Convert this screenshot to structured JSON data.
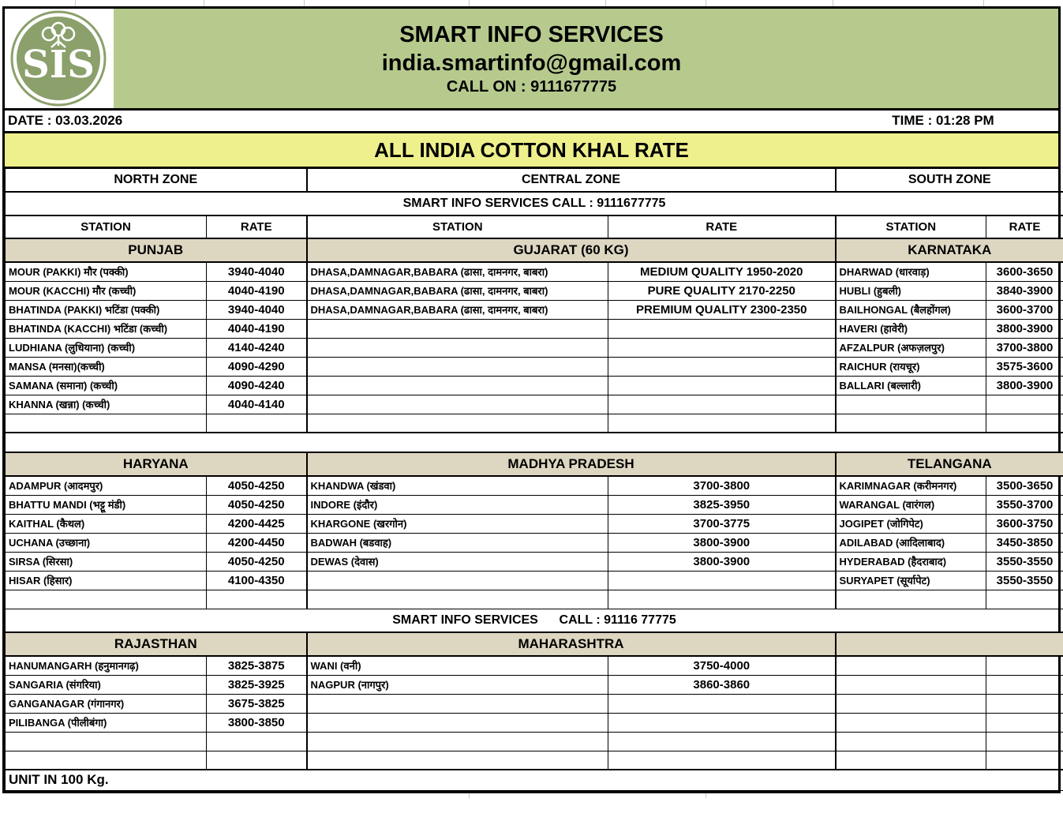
{
  "colors": {
    "header_green": "#b7ca8e",
    "title_yellow": "#eef08c",
    "state_band_tan": "#ddd6c1",
    "logo_green": "#8ba06b",
    "border_black": "#000000"
  },
  "logo": {
    "monogram": "SIS"
  },
  "header": {
    "company": "SMART INFO SERVICES",
    "email": "india.smartinfo@gmail.com",
    "call_on": "CALL ON : 9111677775"
  },
  "meta": {
    "date": "DATE : 03.03.2026",
    "time": "TIME : 01:28 PM"
  },
  "title": "ALL INDIA COTTON KHAL RATE",
  "table": {
    "zones": [
      "NORTH ZONE",
      "CENTRAL ZONE",
      "SOUTH ZONE"
    ],
    "call_line": "SMART INFO SERVICES CALL : 9111677775",
    "mid_call_line": "SMART INFO SERVICES      CALL : 91116 77775",
    "columns": [
      "STATION",
      "RATE"
    ],
    "sections": [
      {
        "states": [
          "PUNJAB",
          "GUJARAT (60 KG)",
          "KARNATAKA"
        ],
        "rows": [
          {
            "n_station": "MOUR (PAKKI) मौर (पक्की)",
            "n_rate": "3940-4040",
            "c_station": "DHASA,DAMNAGAR,BABARA (ढासा, दामनगर, बाबरा)",
            "c_rate": "MEDIUM QUALITY 1950-2020",
            "s_station": "DHARWAD (धारवाड़)",
            "s_rate": "3600-3650"
          },
          {
            "n_station": "MOUR (KACCHI) मौर (कच्ची)",
            "n_rate": "4040-4190",
            "c_station": "DHASA,DAMNAGAR,BABARA (ढासा, दामनगर, बाबरा)",
            "c_rate": "PURE QUALITY 2170-2250",
            "s_station": "HUBLI (हुबली)",
            "s_rate": "3840-3900"
          },
          {
            "n_station": "BHATINDA (PAKKI) भटिंडा (पक्की)",
            "n_rate": "3940-4040",
            "c_station": "DHASA,DAMNAGAR,BABARA (ढासा, दामनगर, बाबरा)",
            "c_rate": "PREMIUM QUALITY 2300-2350",
            "s_station": "BAILHONGAL (बैलहोंगल)",
            "s_rate": "3600-3700"
          },
          {
            "n_station": "BHATINDA (KACCHI) भटिंडा (कच्ची)",
            "n_rate": "4040-4190",
            "c_station": "",
            "c_rate": "",
            "s_station": "HAVERI (हावेरी)",
            "s_rate": "3800-3900"
          },
          {
            "n_station": "LUDHIANA (लुधियाना) (कच्ची)",
            "n_rate": "4140-4240",
            "c_station": "",
            "c_rate": "",
            "s_station": "AFZALPUR (अफज़लपुर)",
            "s_rate": "3700-3800"
          },
          {
            "n_station": "MANSA (मनसा)(कच्ची)",
            "n_rate": "4090-4290",
            "c_station": "",
            "c_rate": "",
            "s_station": "RAICHUR (रायचूर)",
            "s_rate": "3575-3600"
          },
          {
            "n_station": "SAMANA (समाना) (कच्ची)",
            "n_rate": "4090-4240",
            "c_station": "",
            "c_rate": "",
            "s_station": "BALLARI (बल्लारी)",
            "s_rate": "3800-3900"
          },
          {
            "n_station": "KHANNA (खन्ना) (कच्ची)",
            "n_rate": "4040-4140",
            "c_station": "",
            "c_rate": "",
            "s_station": "",
            "s_rate": ""
          },
          {
            "n_station": "",
            "n_rate": "",
            "c_station": "",
            "c_rate": "",
            "s_station": "",
            "s_rate": ""
          }
        ]
      },
      {
        "states": [
          "HARYANA",
          "MADHYA PRADESH",
          "TELANGANA"
        ],
        "rows": [
          {
            "n_station": "ADAMPUR (आदमपुर)",
            "n_rate": "4050-4250",
            "c_station": "KHANDWA (खंडवा)",
            "c_rate": "3700-3800",
            "s_station": "KARIMNAGAR (करीमनगर)",
            "s_rate": "3500-3650"
          },
          {
            "n_station": "BHATTU MANDI (भट्टू मंडी)",
            "n_rate": "4050-4250",
            "c_station": "INDORE (इंदौर)",
            "c_rate": "3825-3950",
            "s_station": "WARANGAL (वारंगल)",
            "s_rate": "3550-3700"
          },
          {
            "n_station": "KAITHAL (कैथल)",
            "n_rate": "4200-4425",
            "c_station": "KHARGONE (खरगोन)",
            "c_rate": "3700-3775",
            "s_station": "JOGIPET (जोगिपेट)",
            "s_rate": "3600-3750"
          },
          {
            "n_station": "UCHANA (उच्छाना)",
            "n_rate": "4200-4450",
            "c_station": "BADWAH (बडवाह)",
            "c_rate": "3800-3900",
            "s_station": "ADILABAD (आदिलाबाद)",
            "s_rate": "3450-3850"
          },
          {
            "n_station": "SIRSA (सिरसा)",
            "n_rate": "4050-4250",
            "c_station": "DEWAS (देवास)",
            "c_rate": "3800-3900",
            "s_station": "HYDERABAD (हैदराबाद)",
            "s_rate": "3550-3550"
          },
          {
            "n_station": "HISAR (हिसार)",
            "n_rate": "4100-4350",
            "c_station": "",
            "c_rate": "",
            "s_station": "SURYAPET (सूर्यापेट)",
            "s_rate": "3550-3550"
          },
          {
            "n_station": "",
            "n_rate": "",
            "c_station": "",
            "c_rate": "",
            "s_station": "",
            "s_rate": ""
          }
        ]
      },
      {
        "states": [
          "RAJASTHAN",
          "MAHARASHTRA",
          ""
        ],
        "rows": [
          {
            "n_station": "HANUMANGARH (हनुमानगढ़)",
            "n_rate": "3825-3875",
            "c_station": "WANI (वनी)",
            "c_rate": "3750-4000",
            "s_station": "",
            "s_rate": ""
          },
          {
            "n_station": "SANGARIA (संगरिया)",
            "n_rate": "3825-3925",
            "c_station": "NAGPUR (नागपुर)",
            "c_rate": "3860-3860",
            "s_station": "",
            "s_rate": ""
          },
          {
            "n_station": "GANGANAGAR (गंगानगर)",
            "n_rate": "3675-3825",
            "c_station": "",
            "c_rate": "",
            "s_station": "",
            "s_rate": ""
          },
          {
            "n_station": "PILIBANGA (पीलीबंगा)",
            "n_rate": "3800-3850",
            "c_station": "",
            "c_rate": "",
            "s_station": "",
            "s_rate": ""
          },
          {
            "n_station": "",
            "n_rate": "",
            "c_station": "",
            "c_rate": "",
            "s_station": "",
            "s_rate": ""
          },
          {
            "n_station": "",
            "n_rate": "",
            "c_station": "",
            "c_rate": "",
            "s_station": "",
            "s_rate": ""
          }
        ]
      }
    ]
  },
  "footer": {
    "unit": "UNIT IN 100 Kg."
  }
}
